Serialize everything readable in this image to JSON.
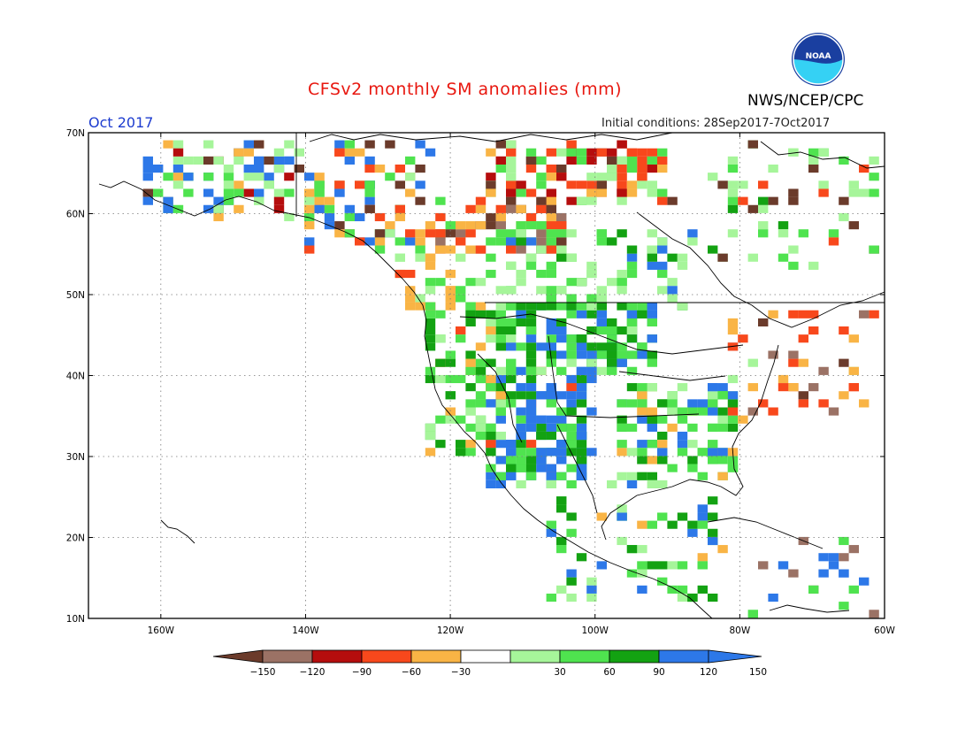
{
  "header": {
    "title": "CFSv2 monthly SM anomalies (mm)",
    "month": "Oct 2017",
    "initial_conditions": "Initial conditions: 28Sep2017-7Oct2017",
    "agency": "NWS/NCEP/CPC",
    "logo_text": "NOAA"
  },
  "axes": {
    "lat_labels": [
      "70N",
      "60N",
      "50N",
      "40N",
      "30N",
      "20N",
      "10N"
    ],
    "lon_labels": [
      "160W",
      "140W",
      "120W",
      "100W",
      "80W",
      "60W"
    ],
    "lat_range": [
      10,
      70
    ],
    "lon_range": [
      -170,
      -60
    ],
    "gridlines": true
  },
  "legend": {
    "labels": [
      "−150",
      "−120",
      "−90",
      "−60",
      "−30",
      "30",
      "60",
      "90",
      "120",
      "150"
    ],
    "colors": [
      "#6b3b2b",
      "#9b7265",
      "#b50d0d",
      "#f8481c",
      "#f9b445",
      "#ffffff",
      "#a6f59a",
      "#4fe34f",
      "#13a212",
      "#2d78e8",
      "#2d78e8"
    ]
  },
  "anomaly_palette": {
    "dry_extreme": "#6b3b2b",
    "dry_strong": "#9b7265",
    "dry_high": "#b50d0d",
    "dry_moderate": "#f8481c",
    "dry_light": "#f9b445",
    "wet_light": "#a6f59a",
    "wet_moderate": "#4fe34f",
    "wet_high": "#13a212",
    "wet_strong": "#2d78e8"
  }
}
